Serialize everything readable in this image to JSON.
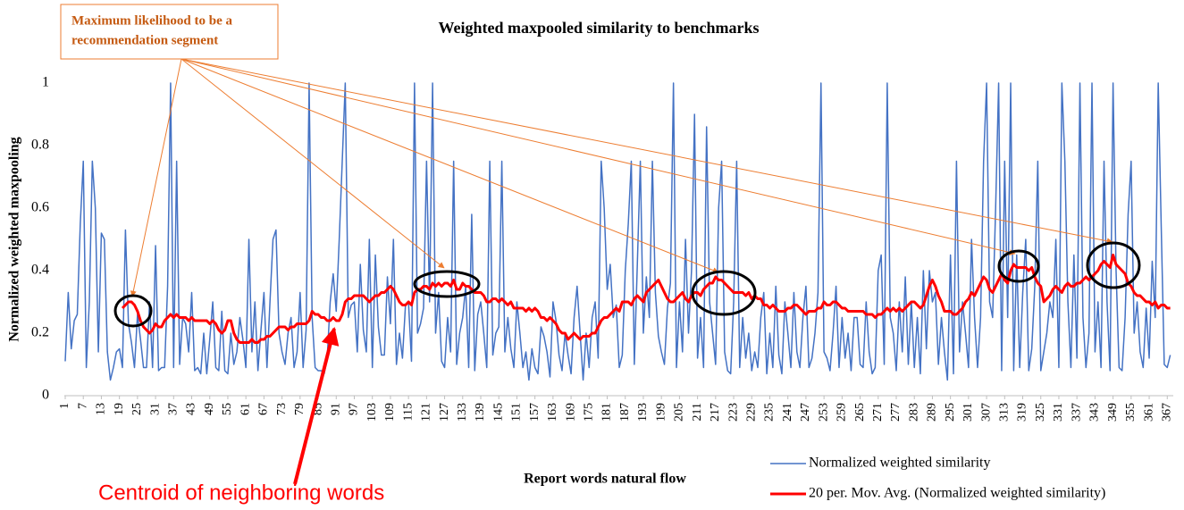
{
  "chart_data": {
    "type": "line",
    "title": "Weighted  maxpooled similarity to benchmarks",
    "x_label": "Report words natural flow",
    "y_label": "Normalized weighted maxpooling",
    "annotation_lines": [
      "Maximum likelihood  to be a",
      "recommendation segment"
    ],
    "callout": "Centroid of neighboring words",
    "legend": "bottom-right",
    "xlim": [
      1,
      369
    ],
    "ylim": [
      0,
      1
    ],
    "xticks": [
      1,
      7,
      13,
      19,
      25,
      31,
      37,
      43,
      49,
      55,
      61,
      67,
      73,
      79,
      85,
      91,
      97,
      103,
      109,
      115,
      121,
      127,
      133,
      139,
      145,
      151,
      157,
      163,
      169,
      175,
      181,
      187,
      193,
      199,
      205,
      211,
      217,
      223,
      229,
      235,
      241,
      247,
      253,
      259,
      265,
      271,
      277,
      283,
      289,
      295,
      301,
      307,
      313,
      319,
      325,
      331,
      337,
      343,
      349,
      355,
      361,
      367
    ],
    "yticks": [
      0,
      0.2,
      0.4,
      0.6,
      0.8,
      1
    ],
    "x": [
      1,
      2,
      3,
      4,
      5,
      6,
      7,
      8,
      9,
      10,
      11,
      12,
      13,
      14,
      15,
      16,
      17,
      18,
      19,
      20,
      21,
      22,
      23,
      24,
      25,
      26,
      27,
      28,
      29,
      30,
      31,
      32,
      33,
      34,
      35,
      36,
      37,
      38,
      39,
      40,
      41,
      42,
      43,
      44,
      45,
      46,
      47,
      48,
      49,
      50,
      51,
      52,
      53,
      54,
      55,
      56,
      57,
      58,
      59,
      60,
      61,
      62,
      63,
      64,
      65,
      66,
      67,
      68,
      69,
      70,
      71,
      72,
      73,
      74,
      75,
      76,
      77,
      78,
      79,
      80,
      81,
      82,
      83,
      84,
      85,
      86,
      87,
      88,
      89,
      90,
      91,
      92,
      93,
      94,
      95,
      96,
      97,
      98,
      99,
      100,
      101,
      102,
      103,
      104,
      105,
      106,
      107,
      108,
      109,
      110,
      111,
      112,
      113,
      114,
      115,
      116,
      117,
      118,
      119,
      120,
      121,
      122,
      123,
      124,
      125,
      126,
      127,
      128,
      129,
      130,
      131,
      132,
      133,
      134,
      135,
      136,
      137,
      138,
      139,
      140,
      141,
      142,
      143,
      144,
      145,
      146,
      147,
      148,
      149,
      150,
      151,
      152,
      153,
      154,
      155,
      156,
      157,
      158,
      159,
      160,
      161,
      162,
      163,
      164,
      165,
      166,
      167,
      168,
      169,
      170,
      171,
      172,
      173,
      174,
      175,
      176,
      177,
      178,
      179,
      180,
      181,
      182,
      183,
      184,
      185,
      186,
      187,
      188,
      189,
      190,
      191,
      192,
      193,
      194,
      195,
      196,
      197,
      198,
      199,
      200,
      201,
      202,
      203,
      204,
      205,
      206,
      207,
      208,
      209,
      210,
      211,
      212,
      213,
      214,
      215,
      216,
      217,
      218,
      219,
      220,
      221,
      222,
      223,
      224,
      225,
      226,
      227,
      228,
      229,
      230,
      231,
      232,
      233,
      234,
      235,
      236,
      237,
      238,
      239,
      240,
      241,
      242,
      243,
      244,
      245,
      246,
      247,
      248,
      249,
      250,
      251,
      252,
      253,
      254,
      255,
      256,
      257,
      258,
      259,
      260,
      261,
      262,
      263,
      264,
      265,
      266,
      267,
      268,
      269,
      270,
      271,
      272,
      273,
      274,
      275,
      276,
      277,
      278,
      279,
      280,
      281,
      282,
      283,
      284,
      285,
      286,
      287,
      288,
      289,
      290,
      291,
      292,
      293,
      294,
      295,
      296,
      297,
      298,
      299,
      300,
      301,
      302,
      303,
      304,
      305,
      306,
      307,
      308,
      309,
      310,
      311,
      312,
      313,
      314,
      315,
      316,
      317,
      318,
      319,
      320,
      321,
      322,
      323,
      324,
      325,
      326,
      327,
      328,
      329,
      330,
      331,
      332,
      333,
      334,
      335,
      336,
      337,
      338,
      339,
      340,
      341,
      342,
      343,
      344,
      345,
      346,
      347,
      348,
      349,
      350,
      351,
      352,
      353,
      354,
      355,
      356,
      357,
      358,
      359,
      360,
      361,
      362,
      363,
      364,
      365,
      366,
      367,
      368
    ],
    "series": [
      {
        "name": "Normalized weighted similarity",
        "color": "#4472c4",
        "width": 1.5,
        "values": [
          0.11,
          0.33,
          0.15,
          0.24,
          0.26,
          0.55,
          0.75,
          0.09,
          0.3,
          0.75,
          0.6,
          0.14,
          0.52,
          0.5,
          0.14,
          0.05,
          0.09,
          0.14,
          0.15,
          0.09,
          0.53,
          0.23,
          0.17,
          0.09,
          0.26,
          0.18,
          0.09,
          0.09,
          0.3,
          0.09,
          0.48,
          0.08,
          0.09,
          0.09,
          0.35,
          1,
          0.09,
          0.75,
          0.1,
          0.25,
          0.23,
          0.14,
          0.33,
          0.08,
          0.09,
          0.07,
          0.2,
          0.07,
          0.18,
          0.3,
          0.09,
          0.08,
          0.27,
          0.08,
          0.07,
          0.2,
          0.1,
          0.14,
          0.25,
          0.18,
          0.09,
          0.5,
          0.14,
          0.3,
          0.08,
          0.21,
          0.33,
          0.09,
          0.3,
          0.5,
          0.53,
          0.2,
          0.14,
          0.1,
          0.2,
          0.25,
          0.09,
          0.14,
          0.33,
          0.09,
          0.21,
          1,
          0.25,
          0.09,
          0.08,
          0.08,
          0.07,
          0.12,
          0.3,
          0.39,
          0.27,
          0.5,
          0.75,
          1,
          0.25,
          0.29,
          0.3,
          0.14,
          0.42,
          0.21,
          0.14,
          0.5,
          0.09,
          0.45,
          0.22,
          0.13,
          0.13,
          0.38,
          0.23,
          0.5,
          0.1,
          0.2,
          0.12,
          0.29,
          0.3,
          0.11,
          1,
          0.2,
          0.23,
          0.28,
          0.75,
          0.3,
          1,
          0.2,
          0.33,
          0.11,
          0.09,
          0.25,
          0.14,
          0.75,
          0.1,
          0.2,
          0.25,
          0.35,
          0.09,
          0.58,
          0.08,
          0.26,
          0.3,
          0.2,
          0.09,
          0.75,
          0.13,
          0.2,
          0.22,
          0.75,
          0.14,
          0.25,
          0.15,
          0.09,
          0.3,
          0.2,
          0.09,
          0.14,
          0.05,
          0.15,
          0.09,
          0.07,
          0.22,
          0.19,
          0.14,
          0.06,
          0.3,
          0.24,
          0.13,
          0.08,
          0.2,
          0.13,
          0.07,
          0.25,
          0.35,
          0.2,
          0.05,
          0.2,
          0.09,
          0.25,
          0.3,
          0.12,
          0.75,
          0.6,
          0.34,
          0.42,
          0.25,
          0.29,
          0.09,
          0.13,
          0.4,
          0.55,
          0.75,
          0.1,
          0.42,
          0.75,
          0.2,
          0.38,
          0.25,
          0.75,
          0.33,
          0.19,
          0.14,
          0.1,
          0.28,
          0.36,
          1,
          0.09,
          0.3,
          0.14,
          0.5,
          0.2,
          0.4,
          0.9,
          0.12,
          0.25,
          0.09,
          0.86,
          0.3,
          0.2,
          0.1,
          0.6,
          0.75,
          0.14,
          0.08,
          0.07,
          0.3,
          0.75,
          0.09,
          0.25,
          0.12,
          0.2,
          0.08,
          0.14,
          0.09,
          0.25,
          0.33,
          0.07,
          0.2,
          0.09,
          0.35,
          0.13,
          0.07,
          0.3,
          0.2,
          0.09,
          0.33,
          0.14,
          0.09,
          0.25,
          0.35,
          0.09,
          0.12,
          0.2,
          0.33,
          1,
          0.14,
          0.12,
          0.08,
          0.2,
          0.35,
          0.09,
          0.25,
          0.12,
          0.2,
          0.08,
          0.25,
          0.25,
          0.1,
          0.09,
          0.3,
          0.14,
          0.07,
          0.09,
          0.4,
          0.45,
          0.1,
          1,
          0.25,
          0.2,
          0.08,
          0.3,
          0.14,
          0.38,
          0.1,
          0.3,
          0.09,
          0.25,
          0.07,
          0.4,
          0.15,
          0.4,
          0.3,
          0.33,
          0.1,
          0.25,
          0.14,
          0.05,
          0.45,
          0.07,
          0.75,
          0.14,
          0.3,
          0.2,
          0.09,
          0.5,
          0.25,
          0.09,
          0.25,
          0.75,
          1,
          0.3,
          0.25,
          0.6,
          1,
          0.08,
          0.75,
          0.25,
          1,
          0.08,
          0.45,
          0.09,
          0.33,
          0.5,
          0.08,
          0.15,
          0.35,
          0.75,
          0.08,
          0.14,
          0.2,
          0.3,
          0.25,
          0.5,
          0.09,
          1,
          0.75,
          0.3,
          0.09,
          0.45,
          0.12,
          1,
          0.25,
          0.09,
          0.2,
          1,
          0.14,
          0.3,
          0.09,
          0.75,
          0.3,
          0.08,
          1,
          0.4,
          0.09,
          0.08,
          0.25,
          0.58,
          0.75,
          0.2,
          0.3,
          0.14,
          0.09,
          0.28,
          0.12,
          0.43,
          0.25,
          1,
          0.54,
          0.1,
          0.09,
          0.13
        ]
      },
      {
        "name": "20 per. Mov. Avg. (Normalized weighted similarity)",
        "color": "#ff0000",
        "width": 3,
        "values": [
          null,
          null,
          null,
          null,
          null,
          null,
          null,
          null,
          null,
          null,
          null,
          null,
          null,
          null,
          null,
          null,
          null,
          null,
          null,
          0.28,
          0.29,
          0.3,
          0.3,
          0.29,
          0.27,
          0.24,
          0.22,
          0.21,
          0.2,
          0.21,
          0.23,
          0.22,
          0.22,
          0.24,
          0.25,
          0.26,
          0.25,
          0.26,
          0.25,
          0.25,
          0.25,
          0.24,
          0.25,
          0.24,
          0.24,
          0.24,
          0.24,
          0.24,
          0.23,
          0.24,
          0.23,
          0.21,
          0.2,
          0.21,
          0.24,
          0.24,
          0.2,
          0.18,
          0.17,
          0.17,
          0.17,
          0.17,
          0.18,
          0.17,
          0.17,
          0.18,
          0.18,
          0.19,
          0.19,
          0.2,
          0.21,
          0.22,
          0.22,
          0.22,
          0.21,
          0.22,
          0.22,
          0.23,
          0.23,
          0.23,
          0.23,
          0.24,
          0.27,
          0.26,
          0.26,
          0.25,
          0.25,
          0.24,
          0.24,
          0.25,
          0.24,
          0.24,
          0.26,
          0.3,
          0.31,
          0.31,
          0.32,
          0.32,
          0.32,
          0.32,
          0.31,
          0.3,
          0.31,
          0.32,
          0.32,
          0.33,
          0.33,
          0.34,
          0.35,
          0.34,
          0.32,
          0.3,
          0.29,
          0.29,
          0.3,
          0.29,
          0.33,
          0.34,
          0.34,
          0.35,
          0.35,
          0.34,
          0.36,
          0.35,
          0.36,
          0.35,
          0.36,
          0.36,
          0.35,
          0.37,
          0.34,
          0.34,
          0.36,
          0.35,
          0.35,
          0.34,
          0.33,
          0.33,
          0.33,
          0.32,
          0.3,
          0.3,
          0.31,
          0.31,
          0.3,
          0.31,
          0.3,
          0.29,
          0.3,
          0.28,
          0.28,
          0.28,
          0.28,
          0.27,
          0.28,
          0.27,
          0.28,
          0.27,
          0.25,
          0.25,
          0.24,
          0.25,
          0.24,
          0.23,
          0.21,
          0.2,
          0.2,
          0.18,
          0.19,
          0.2,
          0.19,
          0.18,
          0.19,
          0.19,
          0.19,
          0.2,
          0.2,
          0.22,
          0.24,
          0.25,
          0.25,
          0.26,
          0.27,
          0.28,
          0.27,
          0.3,
          0.3,
          0.3,
          0.29,
          0.31,
          0.32,
          0.31,
          0.3,
          0.33,
          0.34,
          0.35,
          0.36,
          0.37,
          0.35,
          0.33,
          0.31,
          0.3,
          0.3,
          0.31,
          0.32,
          0.33,
          0.31,
          0.3,
          0.32,
          0.33,
          0.33,
          0.32,
          0.34,
          0.35,
          0.36,
          0.36,
          0.38,
          0.37,
          0.37,
          0.36,
          0.35,
          0.34,
          0.33,
          0.33,
          0.33,
          0.33,
          0.32,
          0.33,
          0.31,
          0.32,
          0.31,
          0.31,
          0.29,
          0.29,
          0.28,
          0.29,
          0.28,
          0.27,
          0.27,
          0.27,
          0.28,
          0.28,
          0.29,
          0.29,
          0.28,
          0.27,
          0.26,
          0.27,
          0.27,
          0.27,
          0.28,
          0.28,
          0.3,
          0.29,
          0.29,
          0.3,
          0.3,
          0.29,
          0.28,
          0.28,
          0.27,
          0.27,
          0.27,
          0.27,
          0.27,
          0.27,
          0.26,
          0.26,
          0.26,
          0.25,
          0.26,
          0.26,
          0.27,
          0.28,
          0.27,
          0.28,
          0.27,
          0.28,
          0.27,
          0.28,
          0.29,
          0.3,
          0.3,
          0.29,
          0.28,
          0.29,
          0.32,
          0.35,
          0.37,
          0.35,
          0.32,
          0.3,
          0.27,
          0.27,
          0.27,
          0.26,
          0.26,
          0.27,
          0.28,
          0.3,
          0.31,
          0.33,
          0.32,
          0.34,
          0.36,
          0.38,
          0.37,
          0.34,
          0.33,
          0.35,
          0.37,
          0.39,
          0.37,
          0.36,
          0.4,
          0.42,
          0.41,
          0.41,
          0.41,
          0.41,
          0.4,
          0.41,
          0.38,
          0.36,
          0.35,
          0.3,
          0.31,
          0.32,
          0.34,
          0.35,
          0.34,
          0.33,
          0.35,
          0.36,
          0.35,
          0.35,
          0.36,
          0.36,
          0.37,
          0.38,
          0.37,
          0.38,
          0.39,
          0.4,
          0.42,
          0.43,
          0.42,
          0.41,
          0.45,
          0.42,
          0.41,
          0.4,
          0.39,
          0.36,
          0.35,
          0.33,
          0.32,
          0.32,
          0.31,
          0.3,
          0.3,
          0.29,
          0.3,
          0.28,
          0.29,
          0.29,
          0.28,
          0.28
        ]
      }
    ]
  }
}
